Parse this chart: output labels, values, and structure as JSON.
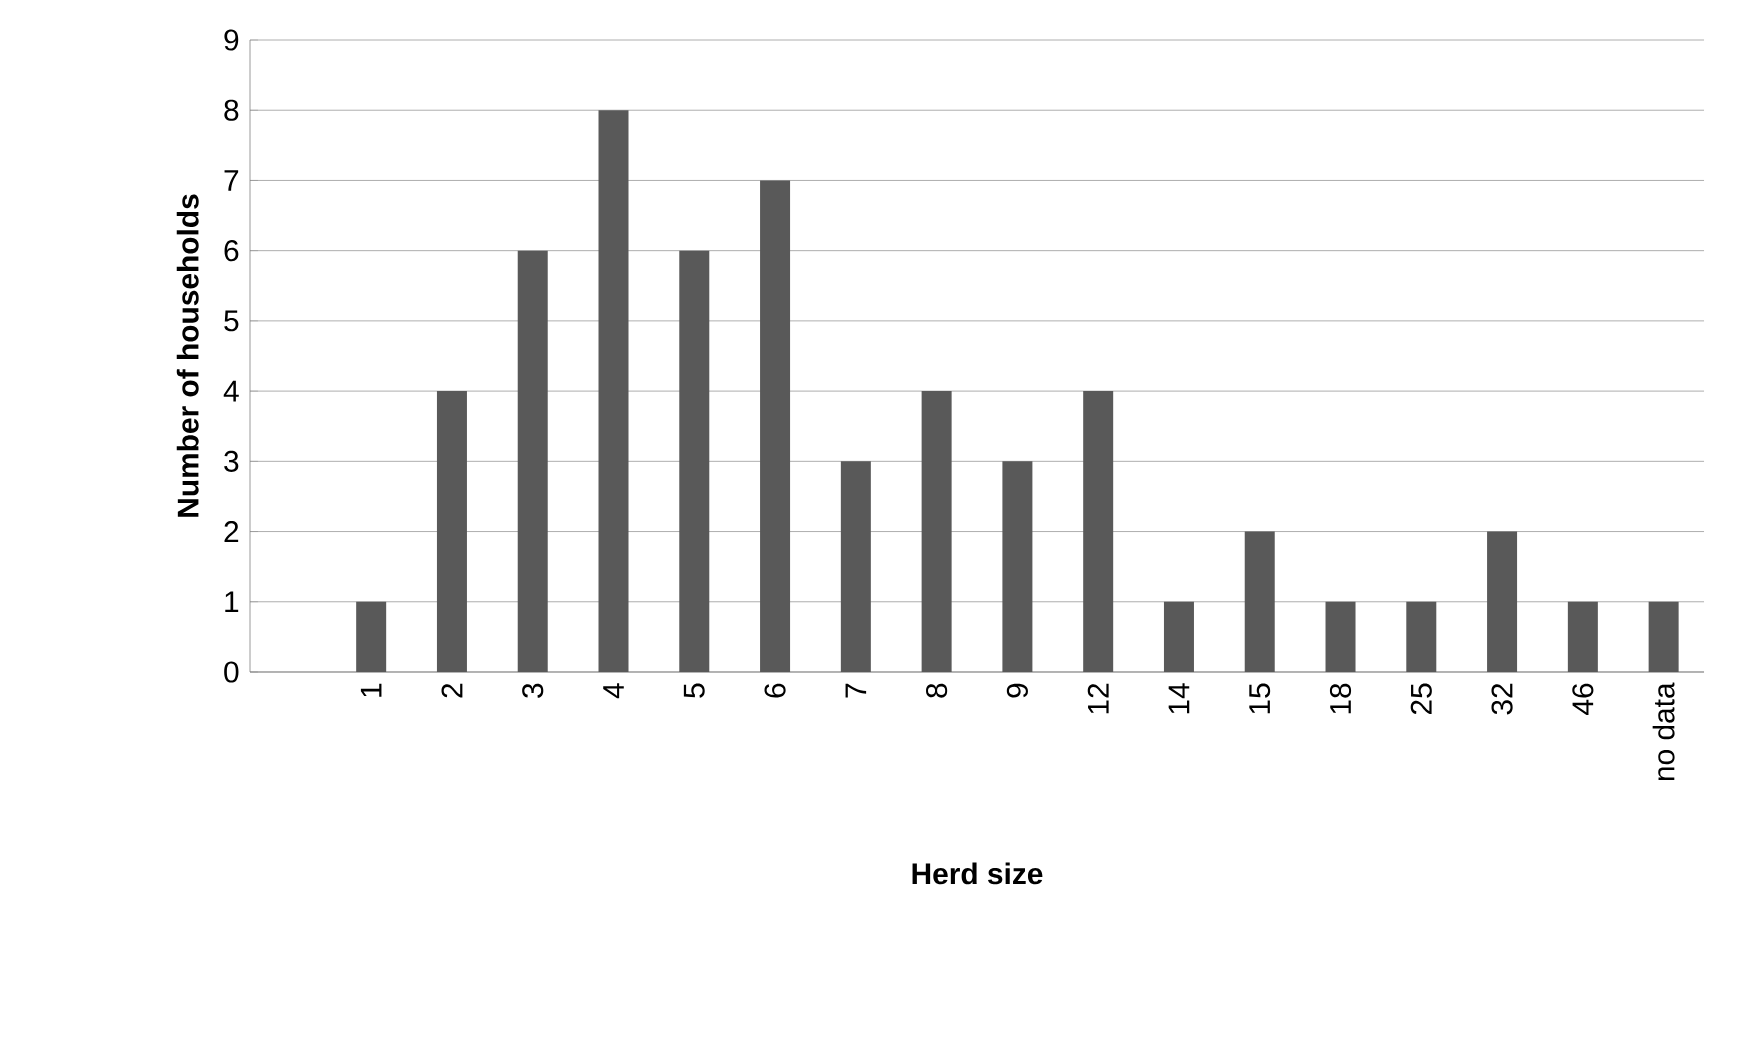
{
  "chart_data": {
    "type": "bar",
    "xlabel": "Herd size",
    "ylabel": "Number of households",
    "categories": [
      null,
      "1",
      "2",
      "3",
      "4",
      "5",
      "6",
      "7",
      "8",
      "9",
      "12",
      "14",
      "15",
      "18",
      "25",
      "32",
      "46",
      "no data"
    ],
    "values": [
      null,
      1,
      4,
      6,
      8,
      6,
      7,
      3,
      4,
      3,
      4,
      1,
      2,
      1,
      1,
      2,
      1,
      1
    ],
    "color": "#595959",
    "ylim": [
      0,
      9
    ],
    "yticks": [
      0,
      1,
      2,
      3,
      4,
      5,
      6,
      7,
      8,
      9
    ],
    "grid": "y"
  }
}
